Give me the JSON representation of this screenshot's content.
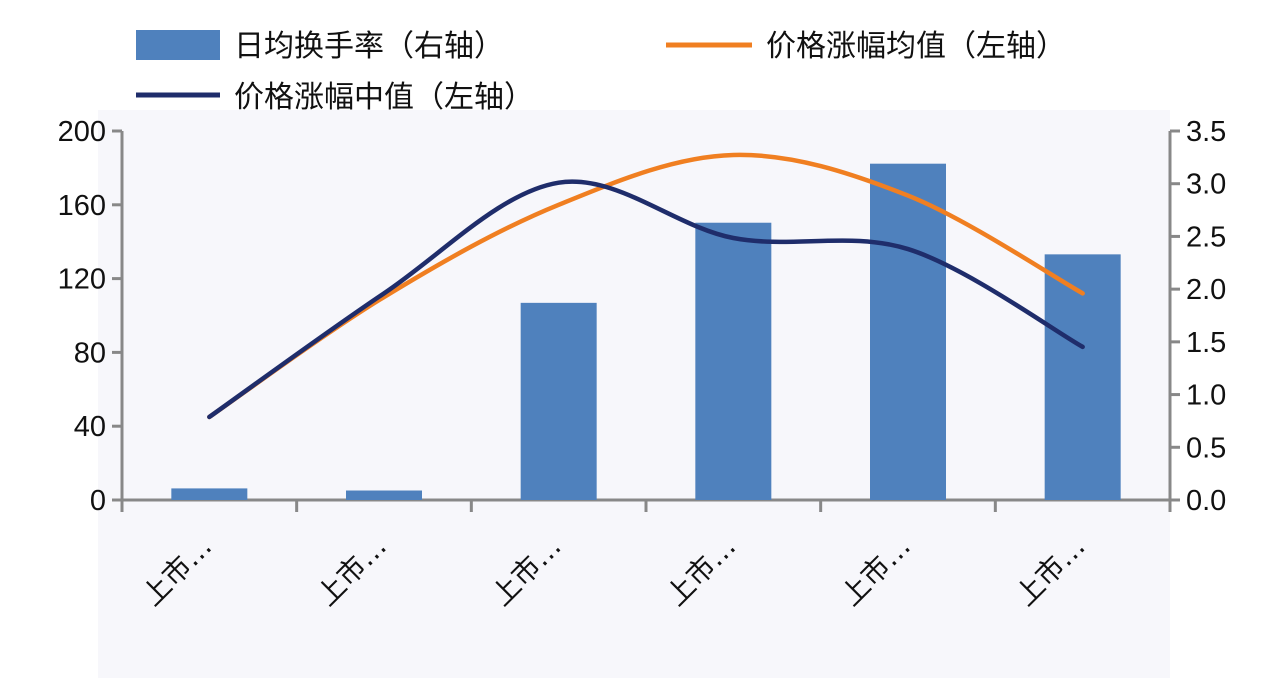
{
  "chart_data": {
    "type": "bar+line",
    "categories": [
      "上市…",
      "上市…",
      "上市…",
      "上市…",
      "上市…",
      "上市…"
    ],
    "left_axis": {
      "ticks": [
        "0",
        "40",
        "80",
        "120",
        "160",
        "200"
      ],
      "ylim": [
        0,
        200
      ]
    },
    "right_axis": {
      "ticks": [
        "0.0",
        "0.5",
        "1.0",
        "1.5",
        "2.0",
        "2.5",
        "3.0",
        "3.5"
      ],
      "ylim": [
        0,
        3.5
      ]
    },
    "series": [
      {
        "name": "日均换手率（右轴）",
        "type": "bar",
        "axis": "right",
        "color": "#4f81bd",
        "values": [
          0.11,
          0.09,
          1.87,
          2.63,
          3.19,
          2.33
        ]
      },
      {
        "name": "价格涨幅均值（左轴）",
        "type": "line",
        "axis": "left",
        "color": "#f07f21",
        "values": [
          45,
          110,
          160,
          187,
          165,
          112
        ]
      },
      {
        "name": "价格涨幅中值（左轴）",
        "type": "line",
        "axis": "left",
        "color": "#1f2d6b",
        "values": [
          45,
          112,
          172,
          142,
          136,
          83
        ]
      }
    ],
    "grid": false,
    "legend_position": "top"
  }
}
